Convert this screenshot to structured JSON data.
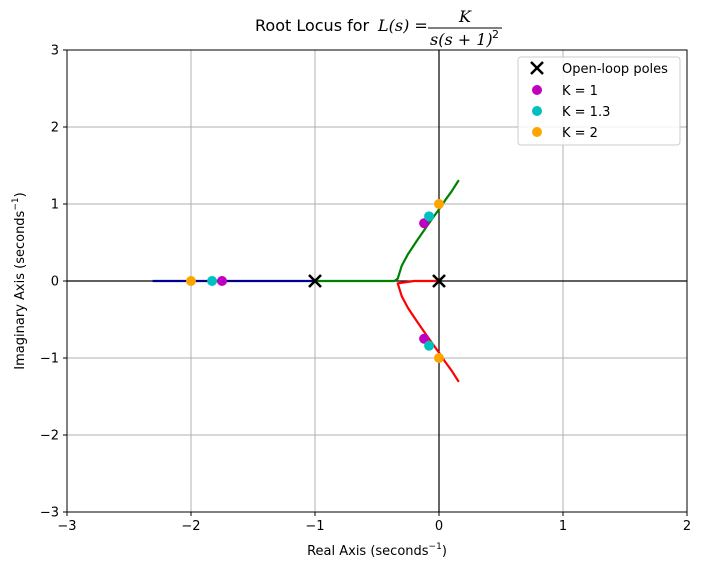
{
  "chart_data": {
    "type": "line",
    "title": {
      "prefix": "Root Locus for",
      "lhs": "L(s) =",
      "numerator": "K",
      "denominator_base": "s(s + 1)",
      "denominator_exp": "2"
    },
    "xlabel": {
      "main": "Real Axis (seconds",
      "sup": "−1",
      "close": ")"
    },
    "ylabel": {
      "main": "Imaginary Axis (seconds",
      "sup": "−1",
      "close": ")"
    },
    "xlim": [
      -3,
      2
    ],
    "ylim": [
      -3,
      3
    ],
    "xticks": [
      -3,
      -2,
      -1,
      0,
      1,
      2
    ],
    "yticks": [
      -3,
      -2,
      -1,
      0,
      1,
      2,
      3
    ],
    "xtick_labels": [
      "−3",
      "−2",
      "−1",
      "0",
      "1",
      "2"
    ],
    "ytick_labels": [
      "−3",
      "−2",
      "−1",
      "0",
      "1",
      "2",
      "3"
    ],
    "grid": true,
    "reference_lines": {
      "x": 0,
      "y": 0
    },
    "series": [
      {
        "name": "branch-real",
        "color": "#00008b",
        "points": [
          [
            -2.31,
            0
          ],
          [
            -2.0,
            0
          ],
          [
            -1.5,
            0
          ],
          [
            -1.0,
            0
          ]
        ]
      },
      {
        "name": "branch-upper",
        "color": "#008000",
        "points": [
          [
            -1.0,
            0
          ],
          [
            -0.5,
            0
          ],
          [
            -0.36,
            0
          ],
          [
            -0.333,
            0.03
          ],
          [
            -0.3,
            0.2
          ],
          [
            -0.25,
            0.35
          ],
          [
            -0.18,
            0.52
          ],
          [
            -0.12,
            0.66
          ],
          [
            -0.05,
            0.82
          ],
          [
            0.0,
            0.93
          ],
          [
            0.05,
            1.05
          ],
          [
            0.1,
            1.16
          ],
          [
            0.16,
            1.31
          ]
        ]
      },
      {
        "name": "branch-lower",
        "color": "#ff0000",
        "points": [
          [
            0.0,
            0
          ],
          [
            -0.1,
            0
          ],
          [
            -0.2,
            0
          ],
          [
            -0.333,
            -0.03
          ],
          [
            -0.3,
            -0.2
          ],
          [
            -0.25,
            -0.35
          ],
          [
            -0.18,
            -0.52
          ],
          [
            -0.12,
            -0.66
          ],
          [
            -0.05,
            -0.82
          ],
          [
            0.0,
            -0.93
          ],
          [
            0.05,
            -1.05
          ],
          [
            0.1,
            -1.16
          ],
          [
            0.16,
            -1.31
          ]
        ]
      }
    ],
    "open_loop_poles": {
      "label": "Open-loop poles",
      "color": "#000000",
      "points": [
        [
          -1,
          0
        ],
        [
          0,
          0
        ]
      ]
    },
    "gain_markers": [
      {
        "label": "K = 1",
        "color": "#c000c0",
        "points": [
          [
            -1.75,
            0
          ],
          [
            -0.12,
            0.75
          ],
          [
            -0.12,
            -0.75
          ]
        ]
      },
      {
        "label": "K = 1.3",
        "color": "#00c0c0",
        "points": [
          [
            -1.83,
            0
          ],
          [
            -0.08,
            0.84
          ],
          [
            -0.08,
            -0.84
          ]
        ]
      },
      {
        "label": "K = 2",
        "color": "#ffa500",
        "points": [
          [
            -2.0,
            0
          ],
          [
            0.0,
            1.0
          ],
          [
            0.0,
            -1.0
          ]
        ]
      }
    ],
    "legend": {
      "position": "top-right",
      "entries": [
        "Open-loop poles",
        "K = 1",
        "K = 1.3",
        "K = 2"
      ]
    }
  }
}
